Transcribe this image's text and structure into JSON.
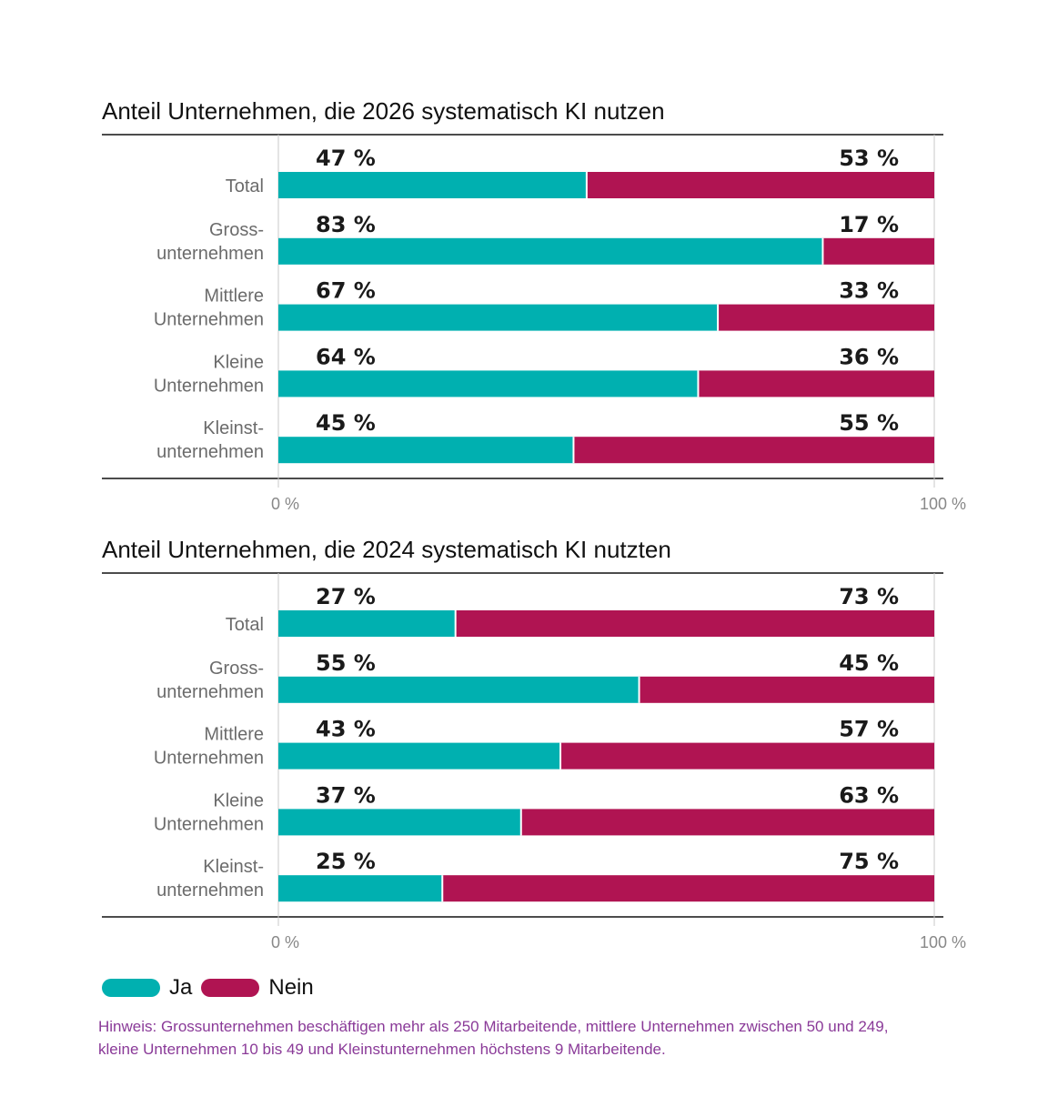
{
  "colors": {
    "ja": "#00b0b0",
    "nein": "#b01452",
    "note": "#8a3a98"
  },
  "legend": {
    "ja": "Ja",
    "nein": "Nein"
  },
  "note": "Hinweis: Grossunternehmen beschäftigen mehr als 250 Mitarbeitende, mittlere Unternehmen zwischen 50 und 249, kleine Unternehmen 10 bis 49 und Kleinstunternehmen höchstens 9 Mitarbeitende.",
  "chart_data": [
    {
      "type": "bar",
      "stacked": true,
      "orientation": "horizontal",
      "title": "Anteil Unternehmen, die 2026 systematisch KI nutzen",
      "categories": [
        [
          "Total"
        ],
        [
          "Gross-",
          "unternehmen"
        ],
        [
          "Mittlere",
          "Unternehmen"
        ],
        [
          "Kleine",
          "Unternehmen"
        ],
        [
          "Kleinst-",
          "unternehmen"
        ]
      ],
      "series": [
        {
          "name": "Ja",
          "values": [
            47,
            83,
            67,
            64,
            45
          ],
          "labels": [
            "47 %",
            "83 %",
            "67 %",
            "64 %",
            "45 %"
          ]
        },
        {
          "name": "Nein",
          "values": [
            53,
            17,
            33,
            36,
            55
          ],
          "labels": [
            "53 %",
            "17 %",
            "33 %",
            "36 %",
            "55 %"
          ]
        }
      ],
      "xlim": [
        0,
        100
      ],
      "xticks": [
        "0 %",
        "100 %"
      ]
    },
    {
      "type": "bar",
      "stacked": true,
      "orientation": "horizontal",
      "title": "Anteil Unternehmen, die 2024 systematisch KI nutzten",
      "categories": [
        [
          "Total"
        ],
        [
          "Gross-",
          "unternehmen"
        ],
        [
          "Mittlere",
          "Unternehmen"
        ],
        [
          "Kleine",
          "Unternehmen"
        ],
        [
          "Kleinst-",
          "unternehmen"
        ]
      ],
      "series": [
        {
          "name": "Ja",
          "values": [
            27,
            55,
            43,
            37,
            25
          ],
          "labels": [
            "27 %",
            "55 %",
            "43 %",
            "37 %",
            "25 %"
          ]
        },
        {
          "name": "Nein",
          "values": [
            73,
            45,
            57,
            63,
            75
          ],
          "labels": [
            "73 %",
            "45 %",
            "57 %",
            "63 %",
            "75 %"
          ]
        }
      ],
      "xlim": [
        0,
        100
      ],
      "xticks": [
        "0 %",
        "100 %"
      ]
    }
  ]
}
